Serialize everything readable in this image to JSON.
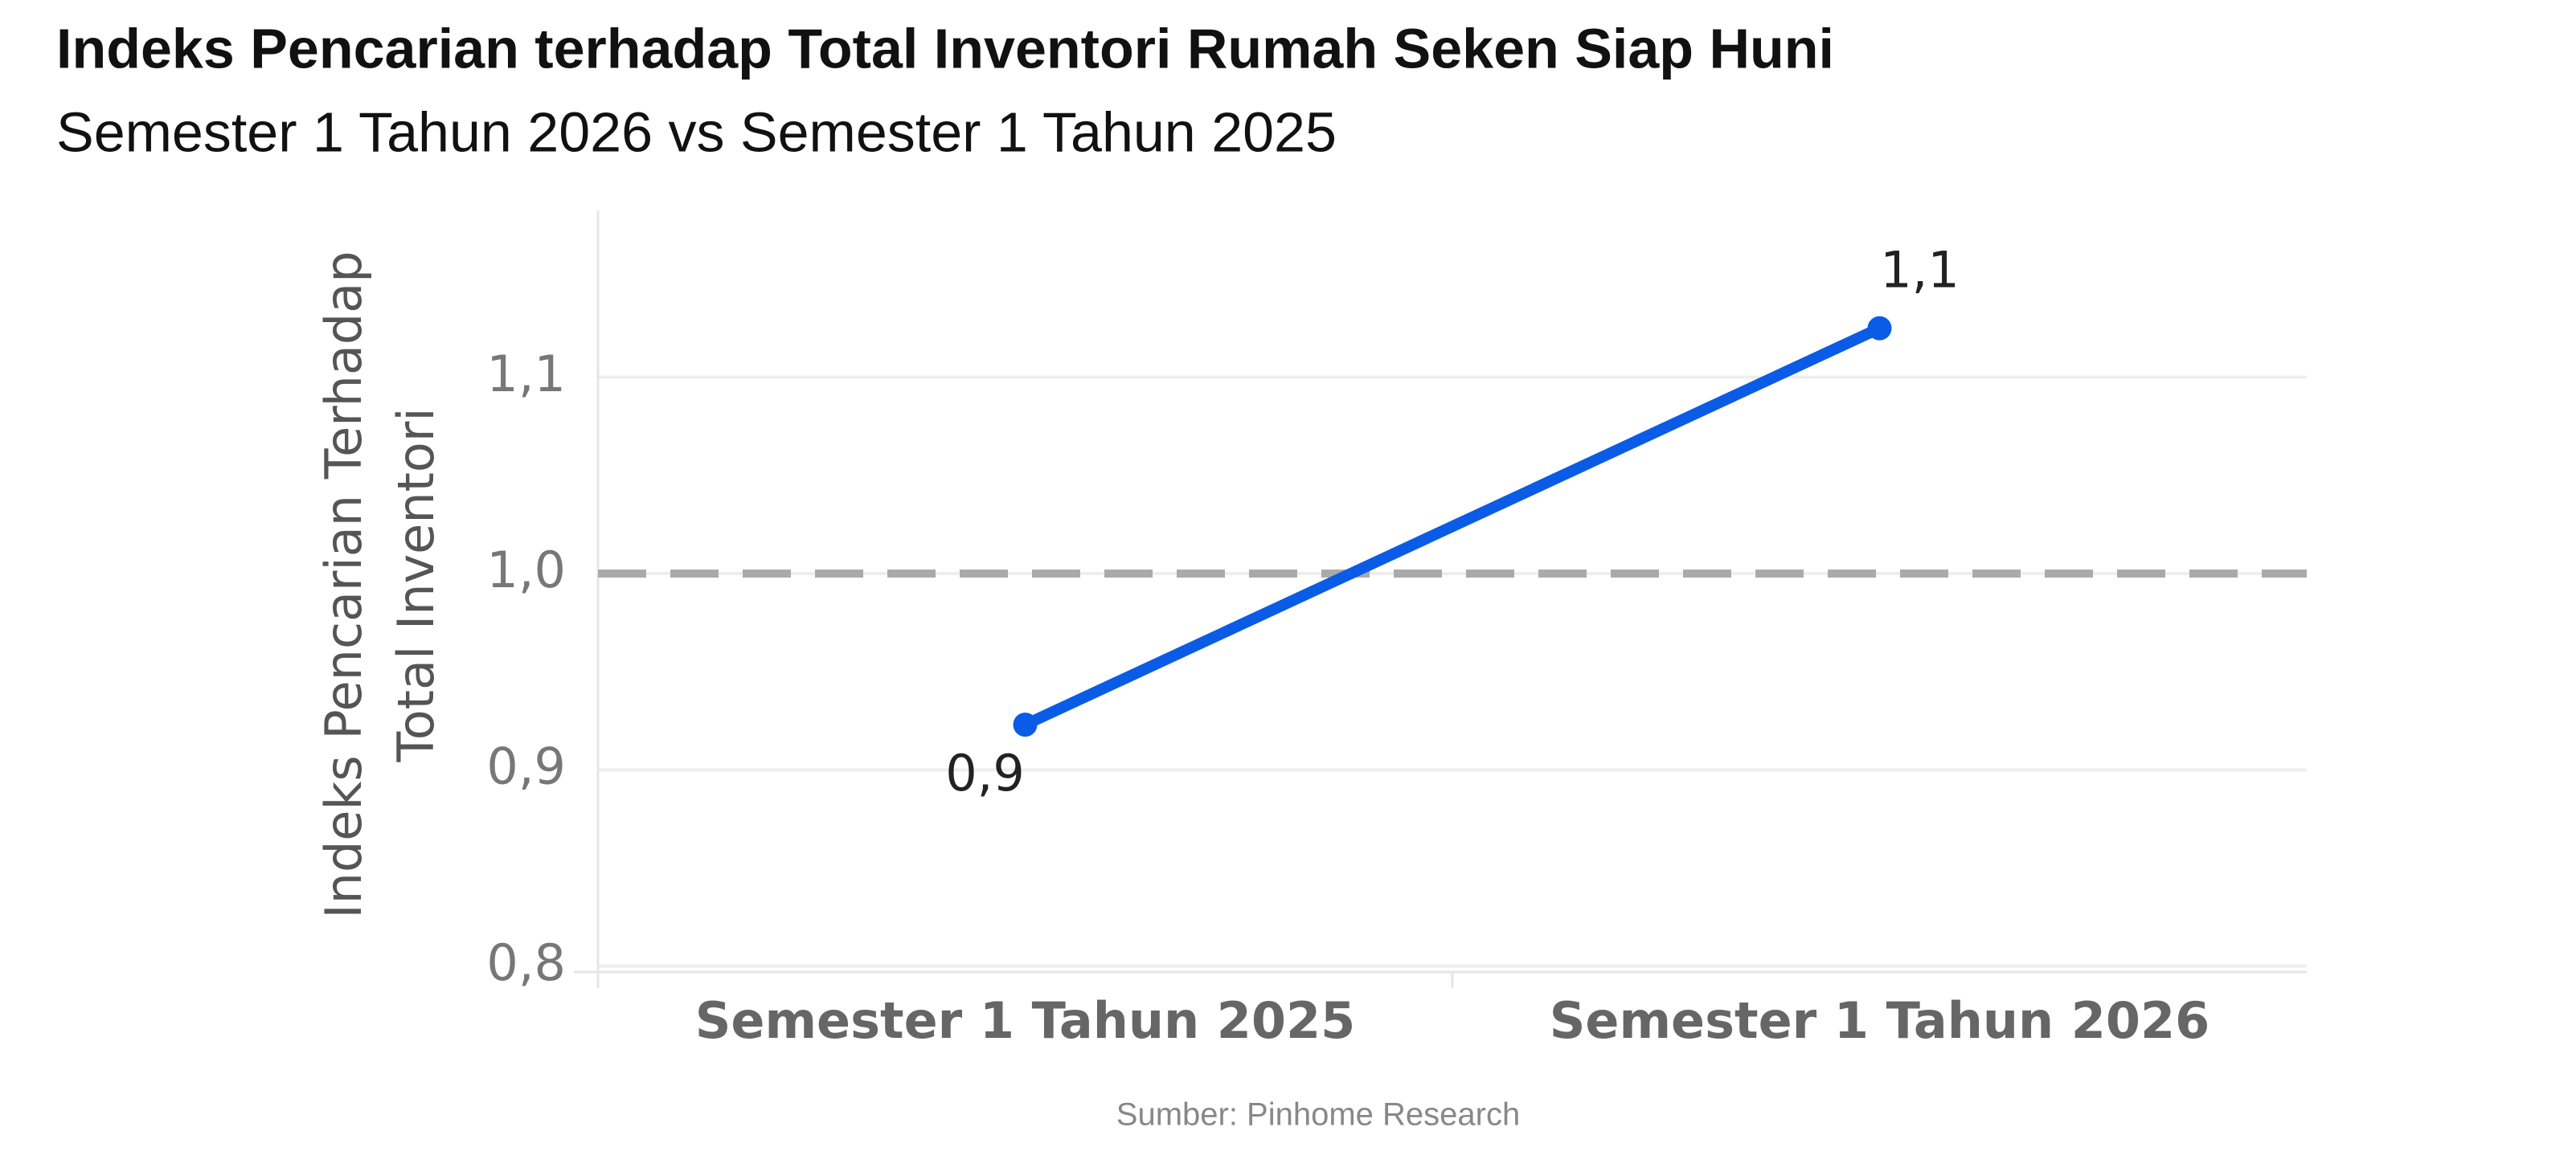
{
  "chart_data": {
    "type": "line",
    "title": "Indeks Pencarian terhadap Total Inventori  Rumah Seken Siap Huni",
    "subtitle": "Semester 1 Tahun 2026 vs Semester 1 Tahun 2025",
    "ylabel": [
      "Indeks Pencarian Terhadap",
      "Total Inventori"
    ],
    "categories": [
      "Semester 1 Tahun 2025",
      "Semester 1 Tahun 2026"
    ],
    "series": [
      {
        "color": "#0a5ce6",
        "values": [
          0.923,
          1.125
        ],
        "value_labels": [
          "0,9",
          "1,1"
        ]
      }
    ],
    "ylim": [
      0.797,
      1.185
    ],
    "yticks": [
      {
        "value": 0.8,
        "label": "0,8"
      },
      {
        "value": 0.9,
        "label": "0,9"
      },
      {
        "value": 1.0,
        "label": "1,0"
      },
      {
        "value": 1.1,
        "label": "1,1"
      }
    ],
    "reference_line": 1.0,
    "grid": true,
    "source": "Sumber: Pinhome Research"
  }
}
